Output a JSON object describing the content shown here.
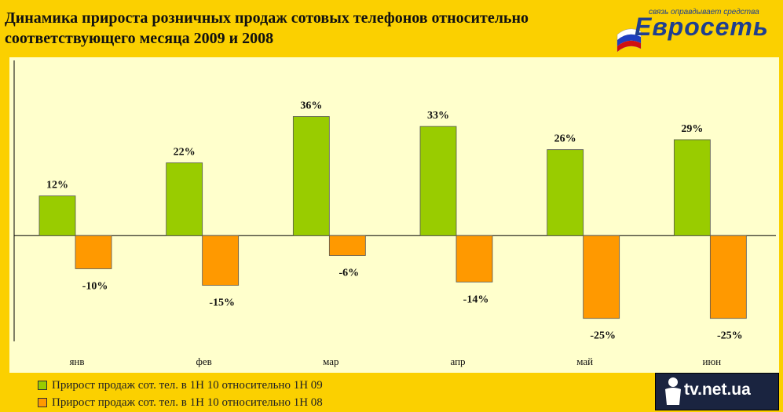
{
  "title": "Динамика прироста розничных продаж сотовых телефонов относительно соответствующего месяца 2009 и 2008",
  "logo": {
    "slogan": "связь оправдывает средства",
    "word": "Евросеть"
  },
  "watermark": {
    "text": "tv.net.ua"
  },
  "colors": {
    "series1": "#99cc00",
    "series2": "#ff9900",
    "plot_bg": "#ffffcc",
    "page_bg": "#fbd000",
    "axis": "#000000"
  },
  "chart_data": {
    "type": "bar",
    "categories": [
      "янв",
      "фев",
      "мар",
      "апр",
      "май",
      "июн"
    ],
    "series": [
      {
        "name": "Прирост продаж сот. тел. в  1Н 10 относительно 1Н 09",
        "values": [
          12,
          22,
          36,
          33,
          26,
          29
        ],
        "labels": [
          "12%",
          "22%",
          "36%",
          "33%",
          "26%",
          "29%"
        ]
      },
      {
        "name": "Прирост продаж сот. тел. в  1Н 10 относительно 1Н 08",
        "values": [
          -10,
          -15,
          -6,
          -14,
          -25,
          -25
        ],
        "labels": [
          "-10%",
          "-15%",
          "-6%",
          "-14%",
          "-25%",
          "-25%"
        ]
      }
    ],
    "ylim": [
      -31,
      52
    ],
    "grid": false,
    "legend_position": "bottom-left"
  }
}
